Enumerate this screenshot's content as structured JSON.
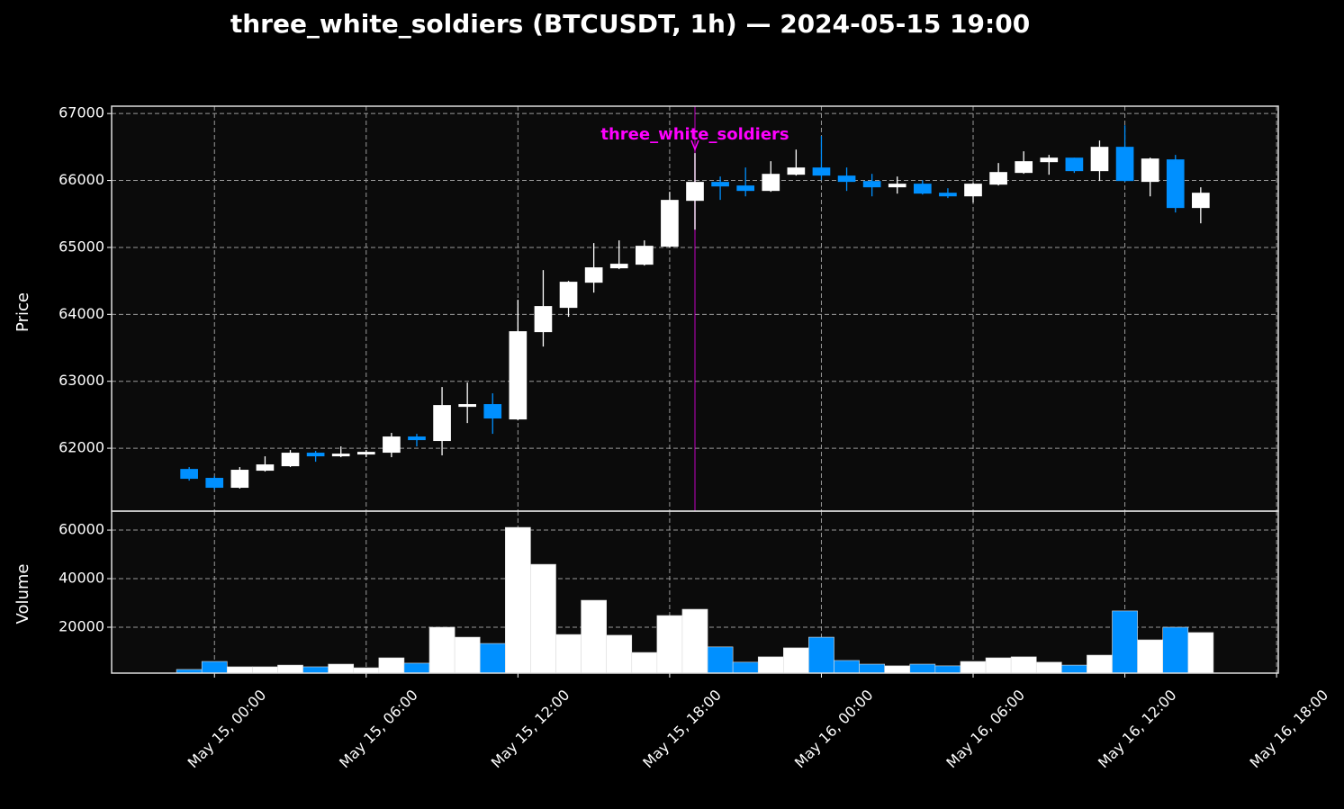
{
  "chart_data": {
    "type": "candlestick",
    "title": "three_white_soldiers (BTCUSDT, 1h) — 2024-05-15 19:00",
    "ylabel": "Price",
    "volume_label": "Volume",
    "x": [
      "May 14, 23:00",
      "May 15, 00:00",
      "May 15, 01:00",
      "May 15, 02:00",
      "May 15, 03:00",
      "May 15, 04:00",
      "May 15, 05:00",
      "May 15, 06:00",
      "May 15, 07:00",
      "May 15, 08:00",
      "May 15, 09:00",
      "May 15, 10:00",
      "May 15, 11:00",
      "May 15, 12:00",
      "May 15, 13:00",
      "May 15, 14:00",
      "May 15, 15:00",
      "May 15, 16:00",
      "May 15, 17:00",
      "May 15, 18:00",
      "May 15, 19:00",
      "May 15, 20:00",
      "May 15, 21:00",
      "May 15, 22:00",
      "May 15, 23:00",
      "May 16, 00:00",
      "May 16, 01:00",
      "May 16, 02:00",
      "May 16, 03:00",
      "May 16, 04:00",
      "May 16, 05:00",
      "May 16, 06:00",
      "May 16, 07:00",
      "May 16, 08:00",
      "May 16, 09:00",
      "May 16, 10:00",
      "May 16, 11:00",
      "May 16, 12:00",
      "May 16, 13:00",
      "May 16, 14:00",
      "May 16, 15:00"
    ],
    "open": [
      61690,
      61557,
      61409,
      61664,
      61731,
      61933,
      61879,
      61906,
      61933,
      62175,
      62108,
      62618,
      62659,
      62430,
      63734,
      64097,
      64473,
      64688,
      64742,
      65011,
      65696,
      65979,
      65925,
      65844,
      66086,
      66194,
      66073,
      65992,
      65898,
      65952,
      65817,
      65763,
      65938,
      66113,
      66274,
      66341,
      66140,
      66503,
      65979,
      66315,
      65589
    ],
    "high": [
      61718,
      61584,
      61718,
      61879,
      61973,
      61960,
      62027,
      61973,
      62229,
      62215,
      62914,
      62981,
      62820,
      64218,
      64661,
      64500,
      65065,
      65105,
      65105,
      65831,
      66409,
      66059,
      66194,
      66288,
      66462,
      66664,
      66194,
      66099,
      66059,
      66005,
      65884,
      65965,
      66261,
      66436,
      66382,
      66341,
      66597,
      66825,
      66341,
      66382,
      65898
    ],
    "low": [
      61516,
      61382,
      61396,
      61651,
      61718,
      61798,
      61866,
      61866,
      61866,
      62027,
      61893,
      62376,
      62215,
      62417,
      63519,
      63963,
      64325,
      64675,
      64729,
      64997,
      65266,
      65710,
      65763,
      65831,
      66073,
      66005,
      65844,
      65763,
      65804,
      65790,
      65737,
      65669,
      65925,
      66100,
      66086,
      66113,
      65992,
      65979,
      65763,
      65522,
      65360
    ],
    "close": [
      61543,
      61409,
      61678,
      61758,
      61933,
      61879,
      61919,
      61946,
      62175,
      62121,
      62645,
      62659,
      62444,
      63748,
      64124,
      64487,
      64702,
      64756,
      65024,
      65710,
      65979,
      65911,
      65844,
      66099,
      66194,
      66073,
      65979,
      65898,
      65952,
      65804,
      65763,
      65952,
      66126,
      66288,
      66341,
      66140,
      66503,
      65992,
      66328,
      65589,
      65817
    ],
    "volume": [
      2600,
      5900,
      3700,
      3700,
      4400,
      3700,
      4800,
      3300,
      7400,
      5200,
      20000,
      15900,
      13300,
      61100,
      45900,
      17000,
      31100,
      16700,
      9600,
      24800,
      27400,
      11900,
      5600,
      7800,
      11500,
      15900,
      6300,
      4800,
      4100,
      4800,
      4100,
      5900,
      7400,
      7800,
      5600,
      4400,
      8500,
      26700,
      14800,
      20000,
      17800
    ],
    "up_color": "#ffffff",
    "down_color": "#0090ff",
    "ylim": [
      61060,
      67110
    ],
    "yticks": [
      62000,
      63000,
      64000,
      65000,
      66000,
      67000
    ],
    "volume_ylim": [
      1100,
      67800
    ],
    "volume_yticks": [
      20000,
      40000,
      60000
    ],
    "xlim": [
      "May 14, 19:56",
      "May 16, 18:04"
    ],
    "xticks": [
      "May 15, 00:00",
      "May 15, 06:00",
      "May 15, 12:00",
      "May 15, 18:00",
      "May 16, 00:00",
      "May 16, 06:00",
      "May 16, 12:00",
      "May 16, 18:00"
    ],
    "annotation": {
      "text": "three_white_soldiers",
      "x": "May 15, 19:00",
      "color": "#ff00ff"
    },
    "grid": true
  }
}
